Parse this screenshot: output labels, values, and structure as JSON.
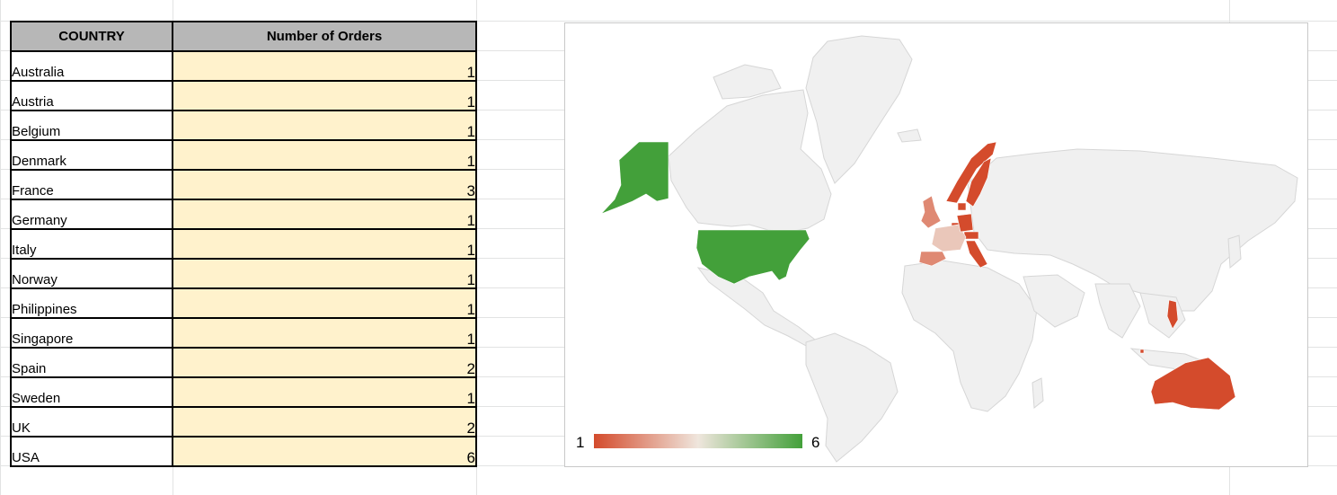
{
  "sheet": {
    "columns": [
      "COUNTRY",
      "Number of Orders"
    ],
    "rows": [
      {
        "country": "Australia",
        "orders": 1
      },
      {
        "country": "Austria",
        "orders": 1
      },
      {
        "country": "Belgium",
        "orders": 1
      },
      {
        "country": "Denmark",
        "orders": 1
      },
      {
        "country": "France",
        "orders": 3
      },
      {
        "country": "Germany",
        "orders": 1
      },
      {
        "country": "Italy",
        "orders": 1
      },
      {
        "country": "Norway",
        "orders": 1
      },
      {
        "country": "Philippines",
        "orders": 1
      },
      {
        "country": "Singapore",
        "orders": 1
      },
      {
        "country": "Spain",
        "orders": 2
      },
      {
        "country": "Sweden",
        "orders": 1
      },
      {
        "country": "UK",
        "orders": 2
      },
      {
        "country": "USA",
        "orders": 6
      }
    ]
  },
  "chart_data": {
    "type": "geo",
    "title": "",
    "regions": [
      "Australia",
      "Austria",
      "Belgium",
      "Denmark",
      "France",
      "Germany",
      "Italy",
      "Norway",
      "Philippines",
      "Singapore",
      "Spain",
      "Sweden",
      "UK",
      "USA"
    ],
    "values": [
      1,
      1,
      1,
      1,
      3,
      1,
      1,
      1,
      1,
      1,
      2,
      1,
      2,
      6
    ],
    "color_scale": {
      "min": 1,
      "max": 6,
      "colors": [
        "#d44b2c",
        "#efe6dd",
        "#43a03a"
      ]
    },
    "legend": {
      "min_label": "1",
      "max_label": "6",
      "placement": "bottom-left"
    },
    "no_data_color": "#f0f0f0"
  }
}
